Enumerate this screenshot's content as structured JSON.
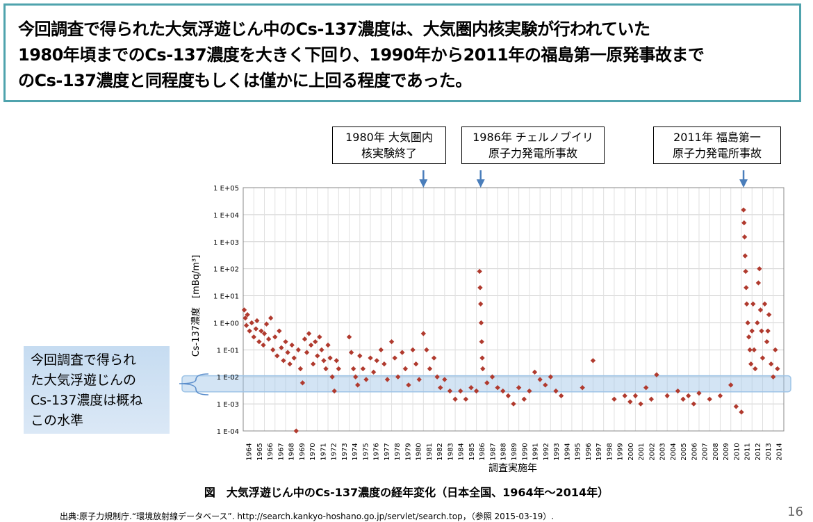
{
  "headline": {
    "lines": [
      "今回調査で得られた大気浮遊じん中のCs-137濃度は、大気圏内核実験が行われていた",
      "1980年頃までのCs-137濃度を大きく下回り、1990年から2011年の福島第一原発事故まで",
      "のCs-137濃度と同程度もしくは僅かに上回る程度であった。"
    ]
  },
  "events": [
    {
      "lines": [
        "1980年 大気圏内",
        "核実験終了"
      ],
      "year": 1981
    },
    {
      "lines": [
        "1986年 チェルノブイリ",
        "原子力発電所事故"
      ],
      "year": 1986.4
    },
    {
      "lines": [
        "2011年 福島第一",
        "原子力発電所事故"
      ],
      "year": 2011.2
    }
  ],
  "callout": {
    "lines": [
      "今回調査で得られ",
      "た大気浮遊じんの",
      "Cs-137濃度は概ね",
      "この水準"
    ]
  },
  "caption": "図　大気浮遊じん中のCs-137濃度の経年変化（日本全国、1964年～2014年）",
  "source": "出典:原子力規制庁.“環境放射線データベース”. http://search.kankyo-hoshano.go.jp/servlet/search.top，（参照 2015-03-19）.",
  "page_number": "16",
  "chart_data": {
    "type": "scatter",
    "title": "",
    "xlabel": "調査実施年",
    "ylabel": "Cs-137濃度　[mBq/m³]",
    "y_scale": "log",
    "ylim": [
      0.0001,
      100000
    ],
    "yticks": [
      "1 E-04",
      "1 E-03",
      "1 E-02",
      "1 E-01",
      "1 E+00",
      "1 E+01",
      "1 E+02",
      "1 E+03",
      "1 E+04",
      "1 E+05"
    ],
    "xlim": [
      1964,
      2015
    ],
    "xticks": [
      "1964",
      "1965",
      "1966",
      "1967",
      "1968",
      "1969",
      "1970",
      "1971",
      "1972",
      "1973",
      "1974",
      "1975",
      "1976",
      "1977",
      "1978",
      "1979",
      "1980",
      "1981",
      "1982",
      "1983",
      "1984",
      "1985",
      "1986",
      "1987",
      "1988",
      "1989",
      "1990",
      "1991",
      "1992",
      "1993",
      "1994",
      "1995",
      "1996",
      "1997",
      "1998",
      "1999",
      "2000",
      "2001",
      "2002",
      "2003",
      "2004",
      "2005",
      "2006",
      "2007",
      "2008",
      "2009",
      "2010",
      "2011",
      "2012",
      "2013",
      "2014"
    ],
    "grid": true,
    "marker_color": "#b03a2e",
    "band": {
      "low": 0.0028,
      "high": 0.011,
      "color": "#9dc3e6"
    },
    "series": [
      {
        "points": [
          [
            1964.1,
            3.0
          ],
          [
            1964.2,
            1.5
          ],
          [
            1964.3,
            0.8
          ],
          [
            1964.4,
            2.0
          ],
          [
            1964.6,
            0.5
          ],
          [
            1964.8,
            1.0
          ],
          [
            1965.0,
            0.3
          ],
          [
            1965.2,
            0.6
          ],
          [
            1965.3,
            1.2
          ],
          [
            1965.5,
            0.2
          ],
          [
            1965.7,
            0.5
          ],
          [
            1965.9,
            0.15
          ],
          [
            1966.0,
            0.4
          ],
          [
            1966.2,
            0.9
          ],
          [
            1966.4,
            0.25
          ],
          [
            1966.6,
            1.5
          ],
          [
            1966.8,
            0.1
          ],
          [
            1967.0,
            0.3
          ],
          [
            1967.2,
            0.06
          ],
          [
            1967.4,
            0.5
          ],
          [
            1967.6,
            0.12
          ],
          [
            1967.8,
            0.04
          ],
          [
            1968.0,
            0.2
          ],
          [
            1968.2,
            0.08
          ],
          [
            1968.4,
            0.03
          ],
          [
            1968.6,
            0.15
          ],
          [
            1968.8,
            0.05
          ],
          [
            1969.0,
            0.0001
          ],
          [
            1969.2,
            0.1
          ],
          [
            1969.4,
            0.02
          ],
          [
            1969.6,
            0.006
          ],
          [
            1969.8,
            0.25
          ],
          [
            1970.0,
            0.08
          ],
          [
            1970.2,
            0.4
          ],
          [
            1970.4,
            0.15
          ],
          [
            1970.6,
            0.03
          ],
          [
            1970.8,
            0.2
          ],
          [
            1971.0,
            0.06
          ],
          [
            1971.2,
            0.3
          ],
          [
            1971.4,
            0.1
          ],
          [
            1971.6,
            0.04
          ],
          [
            1971.8,
            0.02
          ],
          [
            1972.0,
            0.15
          ],
          [
            1972.2,
            0.05
          ],
          [
            1972.4,
            0.01
          ],
          [
            1972.6,
            0.003
          ],
          [
            1972.8,
            0.04
          ],
          [
            1973.0,
            0.02
          ],
          [
            1974.0,
            0.3
          ],
          [
            1974.2,
            0.08
          ],
          [
            1974.4,
            0.02
          ],
          [
            1974.6,
            0.01
          ],
          [
            1974.8,
            0.005
          ],
          [
            1975.0,
            0.06
          ],
          [
            1975.3,
            0.02
          ],
          [
            1975.6,
            0.008
          ],
          [
            1976.0,
            0.05
          ],
          [
            1976.3,
            0.015
          ],
          [
            1976.6,
            0.04
          ],
          [
            1977.0,
            0.1
          ],
          [
            1977.3,
            0.03
          ],
          [
            1977.6,
            0.008
          ],
          [
            1978.0,
            0.2
          ],
          [
            1978.3,
            0.05
          ],
          [
            1978.6,
            0.01
          ],
          [
            1979.0,
            0.08
          ],
          [
            1979.3,
            0.02
          ],
          [
            1979.6,
            0.005
          ],
          [
            1980.0,
            0.1
          ],
          [
            1980.3,
            0.03
          ],
          [
            1980.6,
            0.008
          ],
          [
            1981.0,
            0.4
          ],
          [
            1981.3,
            0.1
          ],
          [
            1981.6,
            0.02
          ],
          [
            1982.0,
            0.05
          ],
          [
            1982.3,
            0.01
          ],
          [
            1982.6,
            0.004
          ],
          [
            1983.0,
            0.008
          ],
          [
            1983.5,
            0.003
          ],
          [
            1984.0,
            0.0015
          ],
          [
            1984.5,
            0.003
          ],
          [
            1985.0,
            0.0015
          ],
          [
            1985.5,
            0.004
          ],
          [
            1986.0,
            0.003
          ],
          [
            1986.3,
            80
          ],
          [
            1986.35,
            20
          ],
          [
            1986.4,
            5
          ],
          [
            1986.45,
            1
          ],
          [
            1986.5,
            0.2
          ],
          [
            1986.55,
            0.05
          ],
          [
            1986.6,
            0.02
          ],
          [
            1987.0,
            0.006
          ],
          [
            1987.5,
            0.01
          ],
          [
            1988.0,
            0.004
          ],
          [
            1988.5,
            0.003
          ],
          [
            1989.0,
            0.002
          ],
          [
            1989.5,
            0.001
          ],
          [
            1990.0,
            0.004
          ],
          [
            1990.5,
            0.0015
          ],
          [
            1991.0,
            0.003
          ],
          [
            1991.5,
            0.015
          ],
          [
            1992.0,
            0.008
          ],
          [
            1992.5,
            0.005
          ],
          [
            1993.0,
            0.01
          ],
          [
            1993.5,
            0.003
          ],
          [
            1994.0,
            0.002
          ],
          [
            1996.0,
            0.004
          ],
          [
            1997.0,
            0.04
          ],
          [
            1999.0,
            0.0015
          ],
          [
            2000.0,
            0.002
          ],
          [
            2000.5,
            0.0012
          ],
          [
            2001.0,
            0.002
          ],
          [
            2001.5,
            0.001
          ],
          [
            2002.0,
            0.004
          ],
          [
            2002.5,
            0.0015
          ],
          [
            2003.0,
            0.012
          ],
          [
            2004.0,
            0.002
          ],
          [
            2005.0,
            0.003
          ],
          [
            2005.5,
            0.0015
          ],
          [
            2006.0,
            0.002
          ],
          [
            2006.5,
            0.001
          ],
          [
            2007.0,
            0.0025
          ],
          [
            2008.0,
            0.0015
          ],
          [
            2009.0,
            0.002
          ],
          [
            2010.0,
            0.005
          ],
          [
            2010.5,
            0.0008
          ],
          [
            2011.0,
            0.0005
          ],
          [
            2011.2,
            15000
          ],
          [
            2011.25,
            5000
          ],
          [
            2011.3,
            1500
          ],
          [
            2011.35,
            300
          ],
          [
            2011.4,
            80
          ],
          [
            2011.45,
            20
          ],
          [
            2011.5,
            5
          ],
          [
            2011.6,
            1
          ],
          [
            2011.7,
            0.3
          ],
          [
            2011.8,
            0.1
          ],
          [
            2011.9,
            0.03
          ],
          [
            2012.0,
            0.5
          ],
          [
            2012.1,
            5
          ],
          [
            2012.2,
            0.1
          ],
          [
            2012.3,
            0.02
          ],
          [
            2012.5,
            1
          ],
          [
            2012.6,
            30
          ],
          [
            2012.7,
            100
          ],
          [
            2012.8,
            3
          ],
          [
            2012.9,
            0.5
          ],
          [
            2013.0,
            0.05
          ],
          [
            2013.2,
            5
          ],
          [
            2013.4,
            0.2
          ],
          [
            2013.6,
            2
          ],
          [
            2013.8,
            0.03
          ],
          [
            2014.0,
            0.01
          ],
          [
            2014.2,
            0.1
          ],
          [
            2014.4,
            0.02
          ],
          [
            2013.5,
            0.5
          ]
        ]
      }
    ]
  }
}
